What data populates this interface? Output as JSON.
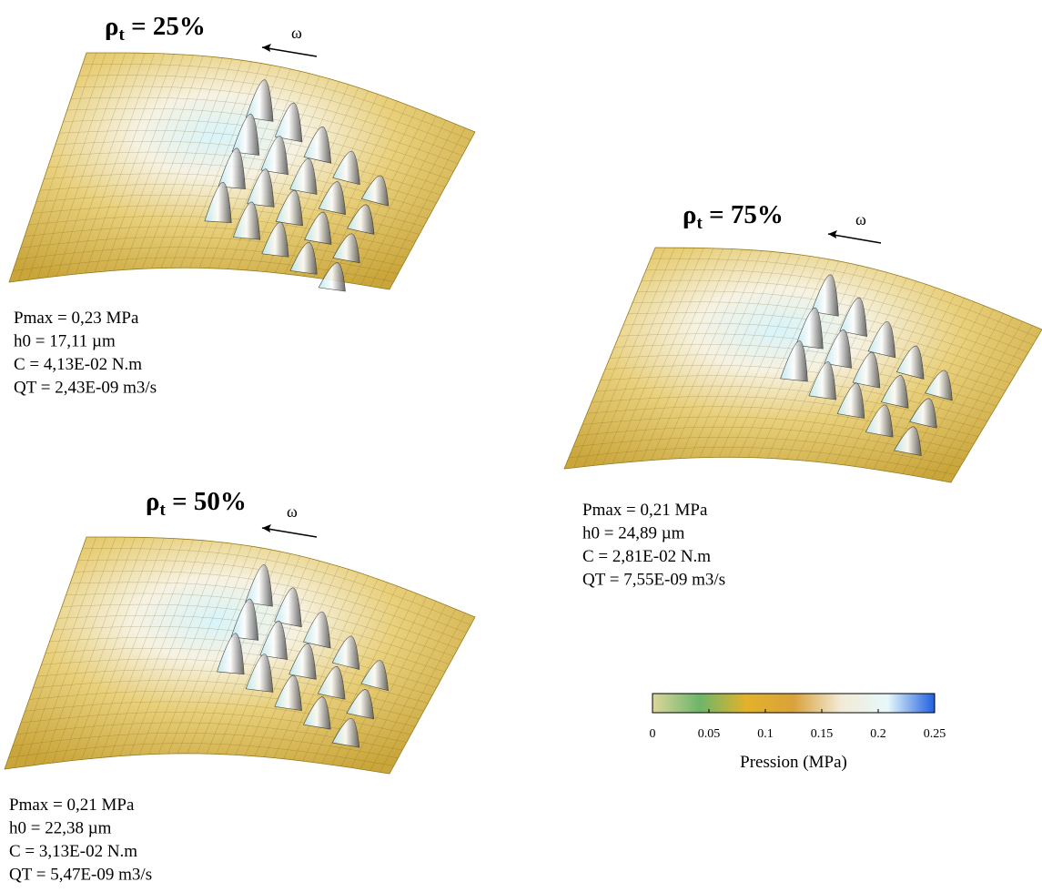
{
  "panels": [
    {
      "symbol": "ρ",
      "sub": "t",
      "rest": " = 25%",
      "omega": "ω",
      "stats": [
        "Pmax = 0,23 MPa",
        "h0 = 17,11 µm",
        "C = 4,13E-02 N.m",
        "QT = 2,43E-09 m3/s"
      ]
    },
    {
      "symbol": "ρ",
      "sub": "t",
      "rest": " = 50%",
      "omega": "ω",
      "stats": [
        "Pmax = 0,21 MPa",
        "h0 = 22,38 µm",
        "C = 3,13E-02 N.m",
        "QT = 5,47E-09 m3/s"
      ]
    },
    {
      "symbol": "ρ",
      "sub": "t",
      "rest": " = 75%",
      "omega": "ω",
      "stats": [
        "Pmax = 0,21 MPa",
        "h0 = 24,89 µm",
        "C = 2,81E-02 N.m",
        "QT = 7,55E-09 m3/s"
      ]
    }
  ],
  "colorbar": {
    "label": "Pression (MPa)",
    "range": [
      0,
      0.25
    ],
    "ticks": [
      0,
      0.05,
      0.1,
      0.15,
      0.2,
      0.25
    ],
    "colors": [
      "#dcd79a",
      "#6db56a",
      "#e3b22a",
      "#d9a23a",
      "#f3ead6",
      "#e6f8fb",
      "#1f5fe0"
    ]
  }
}
